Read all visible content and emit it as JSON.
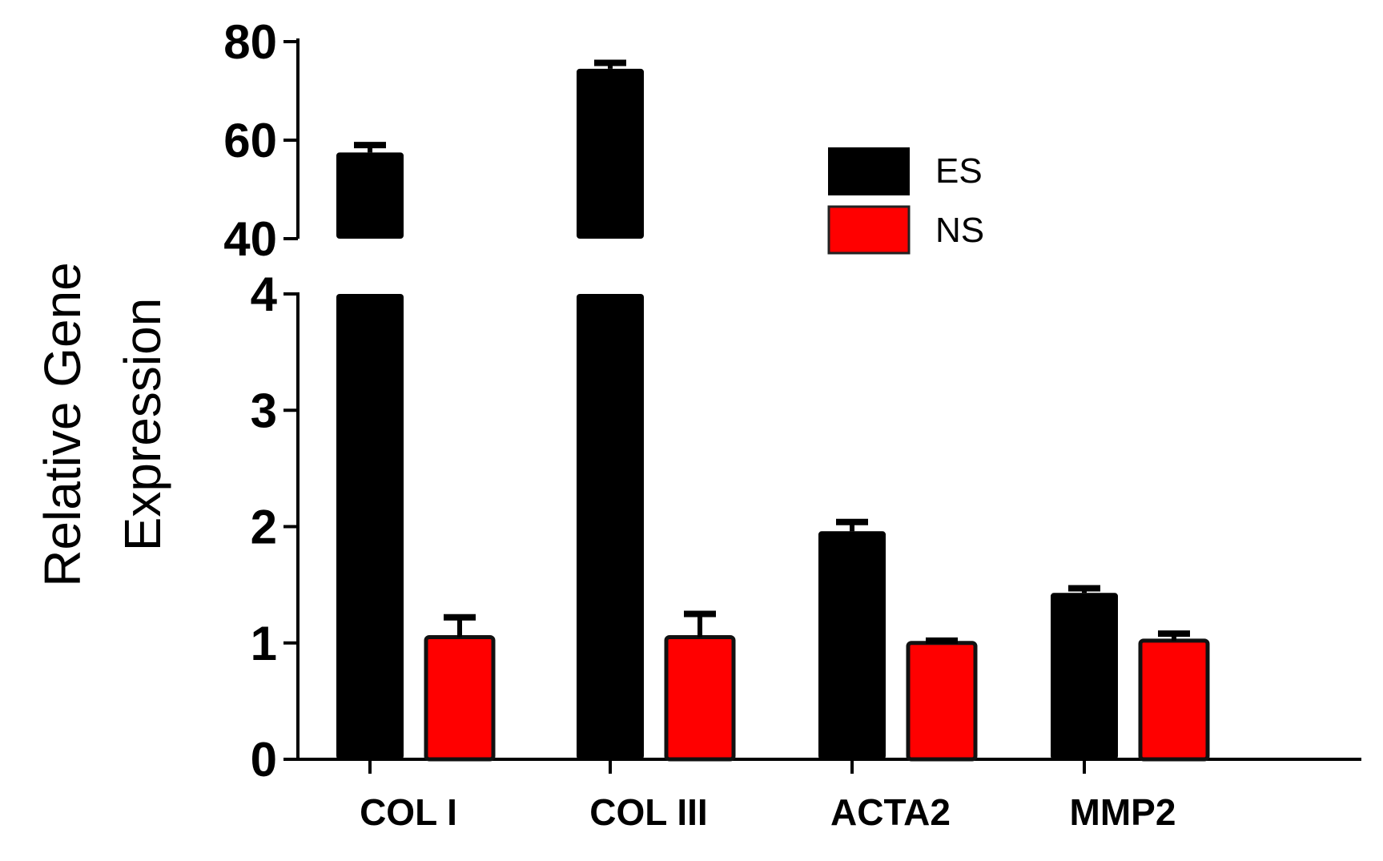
{
  "chart_data": {
    "type": "bar",
    "title": "",
    "ylabel_lines": [
      "Relative Gene",
      "Expression"
    ],
    "xlabel": "",
    "categories": [
      "COL I",
      "COL III",
      "ACTA2",
      "MMP2"
    ],
    "series": [
      {
        "name": "ES",
        "color": "#000000",
        "values": [
          57.5,
          74.5,
          1.96,
          1.43
        ],
        "errors": [
          1.5,
          1.2,
          0.08,
          0.04
        ]
      },
      {
        "name": "NS",
        "color": "#ff0000",
        "values": [
          1.05,
          1.05,
          1.0,
          1.02
        ],
        "errors": [
          0.17,
          0.2,
          0.02,
          0.06
        ]
      }
    ],
    "y_axis": {
      "broken": true,
      "lower_range": [
        0,
        4
      ],
      "upper_range": [
        40,
        80
      ],
      "lower_ticks": [
        0,
        1,
        2,
        3,
        4
      ],
      "upper_ticks": [
        40,
        60,
        80
      ]
    },
    "legend_position": "top-right",
    "grid": false
  }
}
